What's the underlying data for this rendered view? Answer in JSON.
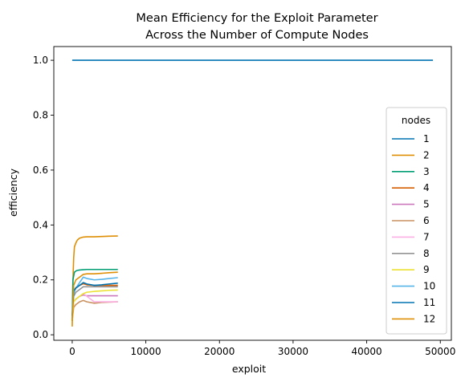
{
  "chart_data": {
    "type": "line",
    "title_lines": [
      "Mean Efficiency for the Exploit Parameter",
      "Across the Number of Compute Nodes"
    ],
    "xlabel": "exploit",
    "ylabel": "efficiency",
    "xlim": [
      -2500,
      51500
    ],
    "ylim": [
      -0.02,
      1.05
    ],
    "xticks": [
      0,
      10000,
      20000,
      30000,
      40000,
      50000
    ],
    "yticks": [
      0.0,
      0.2,
      0.4,
      0.6,
      0.8,
      1.0
    ],
    "xtick_labels": [
      "0",
      "10000",
      "20000",
      "30000",
      "40000",
      "50000"
    ],
    "ytick_labels": [
      "0.0",
      "0.2",
      "0.4",
      "0.6",
      "0.8",
      "1.0"
    ],
    "grid": false,
    "legend": {
      "title": "nodes",
      "position": "right"
    },
    "series": [
      {
        "name": "1",
        "color": "#0173b2",
        "x": [
          0,
          49000
        ],
        "y": [
          1.0,
          1.0
        ]
      },
      {
        "name": "2",
        "color": "#de8f05",
        "x": [
          0,
          100,
          200,
          300,
          500,
          700,
          1000,
          1500,
          2000,
          3000,
          4000,
          5000,
          6200
        ],
        "y": [
          0.03,
          0.2,
          0.28,
          0.32,
          0.335,
          0.345,
          0.352,
          0.356,
          0.357,
          0.357,
          0.358,
          0.359,
          0.36
        ]
      },
      {
        "name": "3",
        "color": "#029e73",
        "x": [
          0,
          100,
          300,
          600,
          1000,
          1500,
          2000,
          3000,
          4000,
          5000,
          6200
        ],
        "y": [
          0.05,
          0.2,
          0.228,
          0.234,
          0.236,
          0.237,
          0.238,
          0.238,
          0.238,
          0.238,
          0.238
        ]
      },
      {
        "name": "4",
        "color": "#d55e00",
        "x": [
          0,
          200,
          500,
          1000,
          1500,
          2000,
          3000,
          4000,
          5000,
          6200
        ],
        "y": [
          0.05,
          0.16,
          0.172,
          0.18,
          0.186,
          0.182,
          0.18,
          0.18,
          0.18,
          0.18
        ]
      },
      {
        "name": "5",
        "color": "#cc78bc",
        "x": [
          0,
          200,
          500,
          1000,
          1500,
          2000,
          3000,
          4000,
          5000,
          6200
        ],
        "y": [
          0.06,
          0.12,
          0.13,
          0.14,
          0.145,
          0.142,
          0.142,
          0.142,
          0.142,
          0.142
        ]
      },
      {
        "name": "6",
        "color": "#ca9161",
        "x": [
          0,
          200,
          500,
          1000,
          1500,
          2000,
          3000,
          4000,
          5000,
          6200
        ],
        "y": [
          0.05,
          0.1,
          0.11,
          0.12,
          0.125,
          0.12,
          0.115,
          0.118,
          0.119,
          0.12
        ]
      },
      {
        "name": "7",
        "color": "#fbafe4",
        "x": [
          0,
          200,
          500,
          1000,
          1500,
          2000,
          3000,
          4000,
          5000,
          6200
        ],
        "y": [
          0.06,
          0.12,
          0.13,
          0.14,
          0.15,
          0.14,
          0.12,
          0.12,
          0.12,
          0.12
        ]
      },
      {
        "name": "8",
        "color": "#949494",
        "x": [
          0,
          200,
          500,
          1000,
          1500,
          2000,
          3000,
          4000,
          5000,
          6200
        ],
        "y": [
          0.06,
          0.14,
          0.155,
          0.165,
          0.175,
          0.175,
          0.175,
          0.175,
          0.175,
          0.175
        ]
      },
      {
        "name": "9",
        "color": "#ece133",
        "x": [
          0,
          200,
          500,
          1000,
          1500,
          2000,
          3000,
          4000,
          5000,
          6200
        ],
        "y": [
          0.05,
          0.12,
          0.13,
          0.14,
          0.15,
          0.155,
          0.158,
          0.16,
          0.162,
          0.163
        ]
      },
      {
        "name": "10",
        "color": "#56b4e9",
        "x": [
          0,
          200,
          500,
          1000,
          1500,
          2000,
          3000,
          4000,
          5000,
          6200
        ],
        "y": [
          0.06,
          0.15,
          0.17,
          0.19,
          0.21,
          0.205,
          0.2,
          0.202,
          0.205,
          0.208
        ]
      },
      {
        "name": "11",
        "color": "#0173b2",
        "x": [
          0,
          200,
          500,
          1000,
          1500,
          2000,
          3000,
          4000,
          5000,
          6200
        ],
        "y": [
          0.07,
          0.16,
          0.17,
          0.18,
          0.19,
          0.185,
          0.18,
          0.182,
          0.185,
          0.188
        ]
      },
      {
        "name": "12",
        "color": "#de8f05",
        "x": [
          0,
          200,
          500,
          1000,
          1500,
          2000,
          3000,
          4000,
          5000,
          6200
        ],
        "y": [
          0.05,
          0.18,
          0.2,
          0.21,
          0.22,
          0.222,
          0.222,
          0.224,
          0.226,
          0.228
        ]
      }
    ]
  }
}
